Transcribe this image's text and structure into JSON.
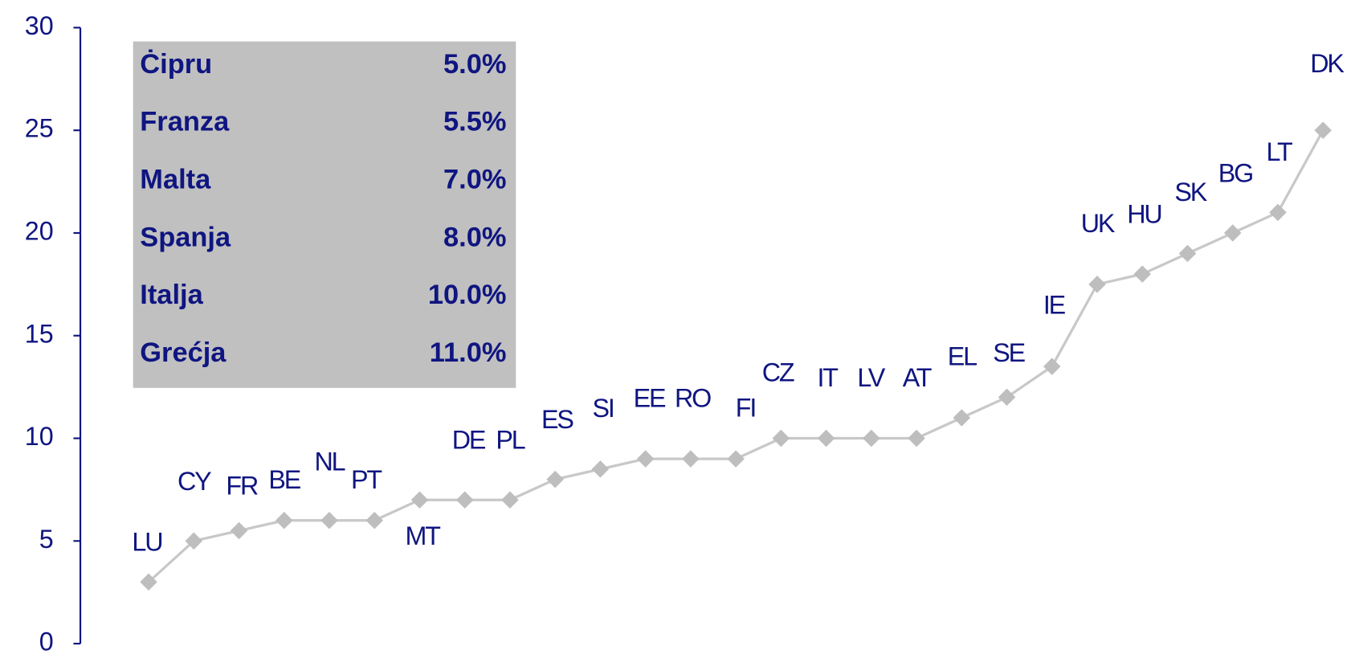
{
  "chart_data": {
    "type": "line",
    "categories": [
      "LU",
      "CY",
      "FR",
      "BE",
      "NL",
      "PT",
      "MT",
      "DE",
      "PL",
      "ES",
      "SI",
      "EE",
      "RO",
      "FI",
      "CZ",
      "IT",
      "LV",
      "AT",
      "EL",
      "SE",
      "IE",
      "UK",
      "HU",
      "SK",
      "BG",
      "LT",
      "DK"
    ],
    "values": [
      3,
      5,
      5.5,
      6,
      6,
      6,
      7,
      7,
      7,
      8,
      8.5,
      9,
      9,
      9,
      10,
      10,
      10,
      10,
      11,
      12,
      13.5,
      17.5,
      18,
      19,
      20,
      21,
      25
    ],
    "color": "#c8c8c8",
    "marker_color": "#bebebe",
    "ylim": [
      0,
      30
    ],
    "yticks": [
      0,
      5,
      10,
      15,
      20,
      25,
      30
    ]
  },
  "table": {
    "rows": [
      [
        "Ċipru",
        "5.0%"
      ],
      [
        "Franza",
        "5.5%"
      ],
      [
        "Malta",
        "7.0%"
      ],
      [
        "Spanja",
        "8.0%"
      ],
      [
        "Italja",
        "10.0%"
      ],
      [
        "Grećja",
        "11.0%"
      ]
    ]
  }
}
